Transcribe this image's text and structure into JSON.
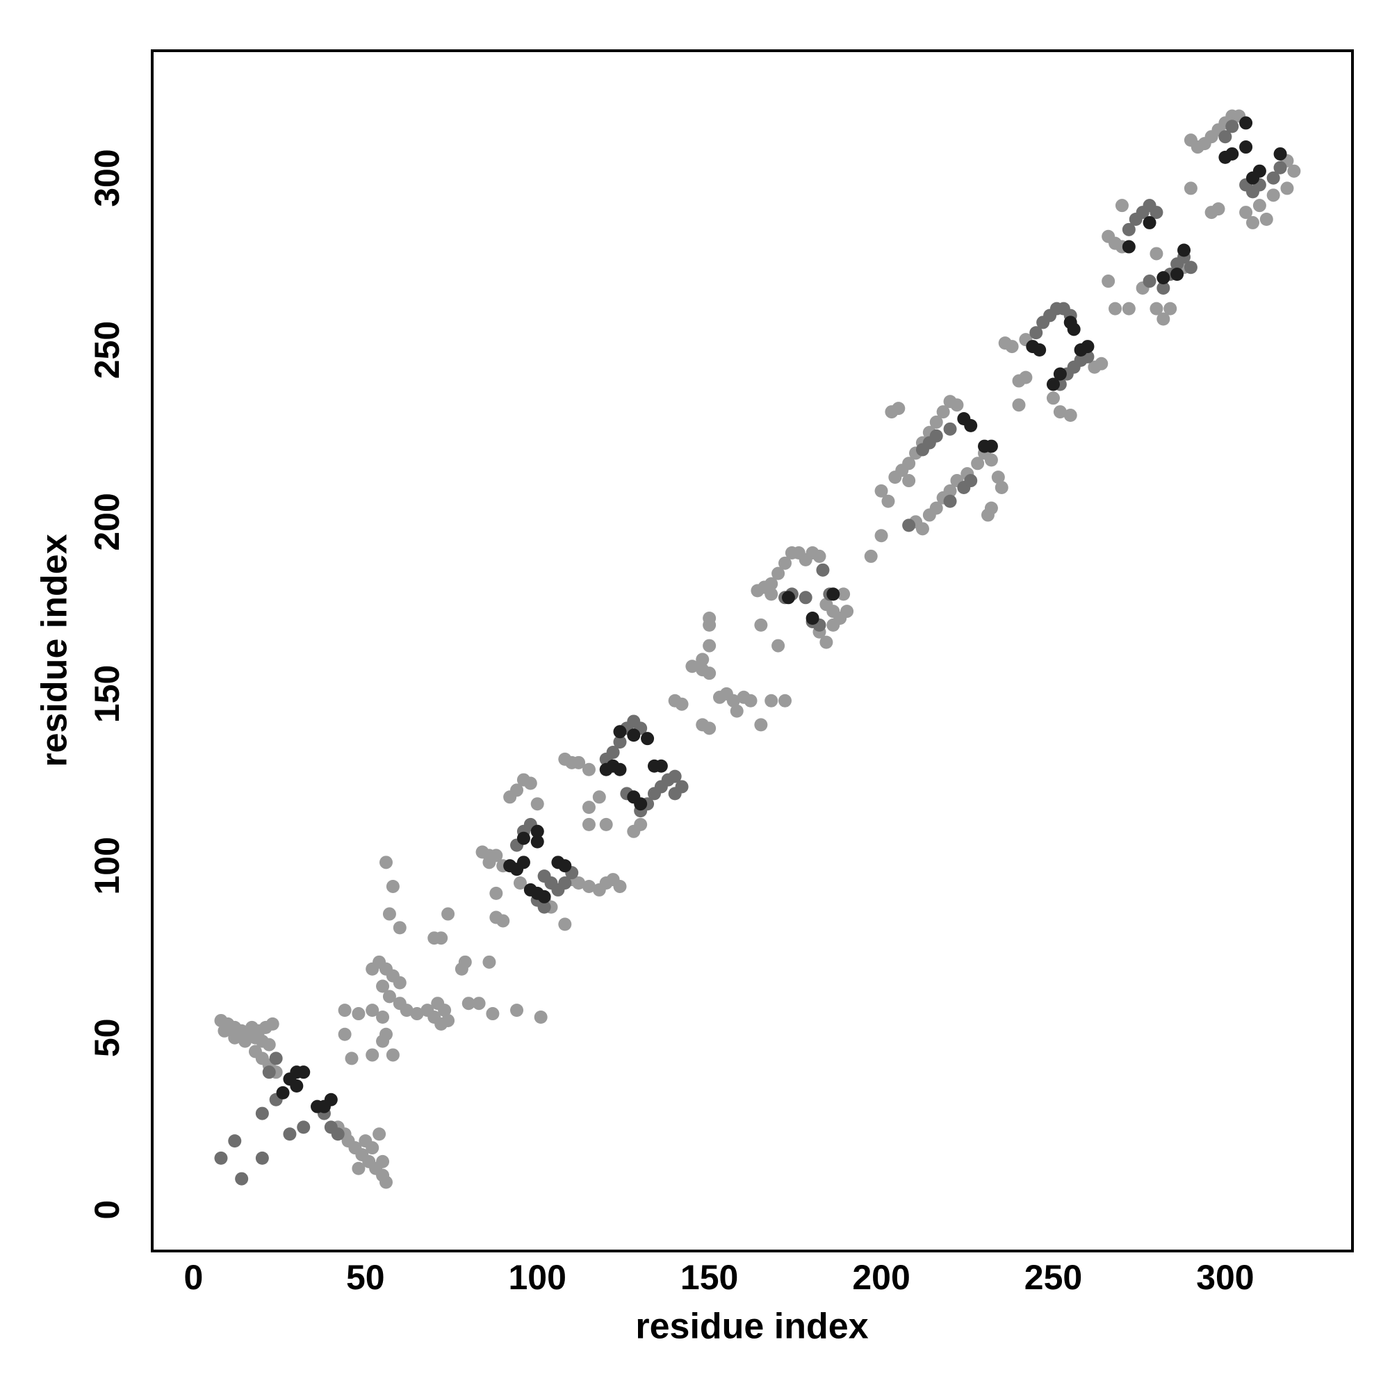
{
  "chart_data": {
    "type": "scatter",
    "xlabel": "residue index",
    "ylabel": "residue index",
    "xlim": [
      -12,
      337
    ],
    "ylim": [
      -12,
      337
    ],
    "xticks": [
      0,
      50,
      100,
      150,
      200,
      250,
      300
    ],
    "yticks": [
      0,
      50,
      100,
      150,
      200,
      250,
      300
    ],
    "grid": false,
    "series": [
      {
        "color": "#9a9a9a",
        "x": [
          8,
          10,
          12,
          14,
          16,
          18,
          20,
          22,
          9,
          12,
          15,
          17,
          19,
          21,
          23,
          18,
          20,
          22,
          24,
          45,
          47,
          49,
          51,
          53,
          55,
          56,
          50,
          52,
          54,
          55,
          48,
          44,
          42,
          52,
          54,
          56,
          58,
          60,
          55,
          57,
          60,
          62,
          65,
          68,
          70,
          72,
          74,
          73,
          71,
          56,
          58,
          57,
          60,
          70,
          72,
          74,
          79,
          78,
          80,
          83,
          87,
          94,
          101,
          55,
          52,
          48,
          44,
          44,
          52,
          55,
          58,
          56,
          46,
          86,
          84,
          86,
          88,
          86,
          88,
          90,
          92,
          94,
          96,
          98,
          100,
          95,
          110,
          112,
          115,
          118,
          120,
          122,
          124,
          88,
          90,
          108,
          104,
          102,
          108,
          110,
          112,
          115,
          118,
          115,
          120,
          115,
          128,
          130,
          140,
          142,
          145,
          148,
          150,
          148,
          150,
          150,
          150,
          148,
          150,
          153,
          155,
          157,
          160,
          162,
          158,
          165,
          168,
          172,
          165,
          168,
          170,
          164,
          166,
          168,
          170,
          172,
          174,
          176,
          178,
          180,
          182,
          184,
          186,
          188,
          190,
          182,
          184,
          186,
          189,
          197,
          200,
          200,
          202,
          204,
          206,
          208,
          210,
          212,
          214,
          216,
          218,
          220,
          222,
          203,
          205,
          208,
          210,
          212,
          214,
          216,
          218,
          220,
          222,
          225,
          228,
          230,
          232,
          234,
          231,
          232,
          235,
          236,
          238,
          240,
          242,
          240,
          252,
          255,
          250,
          262,
          264,
          242,
          266,
          268,
          270,
          266,
          268,
          272,
          276,
          280,
          282,
          284,
          286,
          288,
          280,
          270,
          290,
          292,
          294,
          296,
          298,
          300,
          302,
          304,
          290,
          296,
          298,
          306,
          308,
          310,
          312,
          314,
          316,
          318,
          320,
          318
        ],
        "y": [
          55,
          54,
          53,
          52,
          51,
          50,
          49,
          48,
          52,
          50,
          49,
          53,
          52,
          53,
          54,
          46,
          44,
          42,
          40,
          20,
          18,
          16,
          14,
          12,
          10,
          8,
          20,
          18,
          22,
          14,
          12,
          22,
          24,
          70,
          72,
          70,
          68,
          66,
          65,
          62,
          60,
          58,
          57,
          58,
          56,
          54,
          55,
          58,
          60,
          101,
          94,
          86,
          82,
          79,
          79,
          86,
          72,
          70,
          60,
          60,
          57,
          58,
          56,
          56,
          58,
          57,
          58,
          51,
          45,
          49,
          45,
          51,
          44,
          72,
          104,
          103,
          92,
          101,
          103,
          100,
          120,
          122,
          125,
          124,
          118,
          95,
          96,
          95,
          94,
          93,
          95,
          96,
          94,
          85,
          84,
          83,
          88,
          90,
          131,
          130,
          130,
          128,
          120,
          117,
          112,
          112,
          110,
          112,
          148,
          147,
          158,
          157,
          156,
          160,
          164,
          170,
          172,
          141,
          140,
          149,
          150,
          148,
          149,
          148,
          145,
          141,
          148,
          148,
          170,
          179,
          164,
          180,
          181,
          182,
          185,
          188,
          191,
          191,
          189,
          191,
          190,
          176,
          174,
          172,
          174,
          168,
          165,
          170,
          179,
          190,
          196,
          209,
          206,
          213,
          215,
          217,
          220,
          223,
          226,
          229,
          232,
          235,
          234,
          232,
          233,
          212,
          200,
          198,
          202,
          204,
          207,
          209,
          212,
          214,
          217,
          220,
          218,
          213,
          202,
          204,
          210,
          252,
          251,
          241,
          242,
          234,
          232,
          231,
          236,
          245,
          246,
          253,
          283,
          281,
          280,
          270,
          262,
          262,
          268,
          262,
          259,
          262,
          273,
          274,
          278,
          292,
          311,
          309,
          310,
          312,
          314,
          316,
          318,
          318,
          297,
          290,
          291,
          290,
          287,
          292,
          288,
          295,
          303,
          305,
          302,
          297
        ]
      },
      {
        "color": "#6e6e6e",
        "x": [
          24,
          22,
          20,
          24,
          28,
          32,
          40,
          42,
          38,
          12,
          8,
          14,
          20,
          94,
          96,
          98,
          100,
          102,
          104,
          106,
          108,
          110,
          100,
          102,
          120,
          122,
          124,
          126,
          128,
          130,
          130,
          132,
          134,
          136,
          138,
          140,
          142,
          140,
          126,
          172,
          174,
          178,
          180,
          182,
          185,
          183,
          212,
          214,
          216,
          220,
          224,
          226,
          220,
          208,
          245,
          247,
          249,
          251,
          253,
          255,
          252,
          254,
          256,
          258,
          260,
          272,
          274,
          276,
          278,
          280,
          278,
          282,
          284,
          286,
          288,
          290,
          300,
          302,
          306,
          308,
          310,
          314,
          316
        ],
        "y": [
          44,
          40,
          28,
          32,
          22,
          24,
          24,
          22,
          28,
          20,
          15,
          9,
          15,
          106,
          110,
          112,
          110,
          97,
          95,
          93,
          95,
          98,
          90,
          88,
          131,
          133,
          136,
          140,
          142,
          140,
          116,
          118,
          121,
          123,
          125,
          126,
          123,
          121,
          121,
          178,
          179,
          178,
          171,
          170,
          179,
          186,
          221,
          223,
          225,
          227,
          210,
          212,
          206,
          199,
          255,
          258,
          260,
          262,
          262,
          260,
          240,
          243,
          245,
          247,
          248,
          285,
          288,
          290,
          292,
          290,
          270,
          268,
          272,
          275,
          277,
          274,
          312,
          315,
          298,
          296,
          298,
          300,
          303
        ]
      },
      {
        "color": "#1e1e1e",
        "x": [
          28,
          30,
          32,
          30,
          38,
          40,
          36,
          26,
          92,
          94,
          96,
          100,
          100,
          98,
          100,
          102,
          106,
          108,
          96,
          120,
          122,
          124,
          128,
          132,
          134,
          136,
          128,
          130,
          124,
          173,
          180,
          186,
          224,
          226,
          230,
          232,
          244,
          246,
          255,
          256,
          250,
          252,
          258,
          260,
          272,
          278,
          282,
          288,
          286,
          300,
          302,
          306,
          308,
          310,
          316,
          306
        ],
        "y": [
          38,
          40,
          40,
          36,
          30,
          32,
          30,
          34,
          100,
          99,
          101,
          107,
          110,
          93,
          92,
          91,
          101,
          100,
          108,
          128,
          129,
          128,
          138,
          137,
          129,
          129,
          120,
          118,
          139,
          178,
          172,
          179,
          230,
          228,
          222,
          222,
          251,
          250,
          258,
          256,
          240,
          243,
          250,
          251,
          280,
          287,
          271,
          279,
          272,
          306,
          307,
          316,
          300,
          302,
          307,
          309
        ]
      }
    ]
  }
}
